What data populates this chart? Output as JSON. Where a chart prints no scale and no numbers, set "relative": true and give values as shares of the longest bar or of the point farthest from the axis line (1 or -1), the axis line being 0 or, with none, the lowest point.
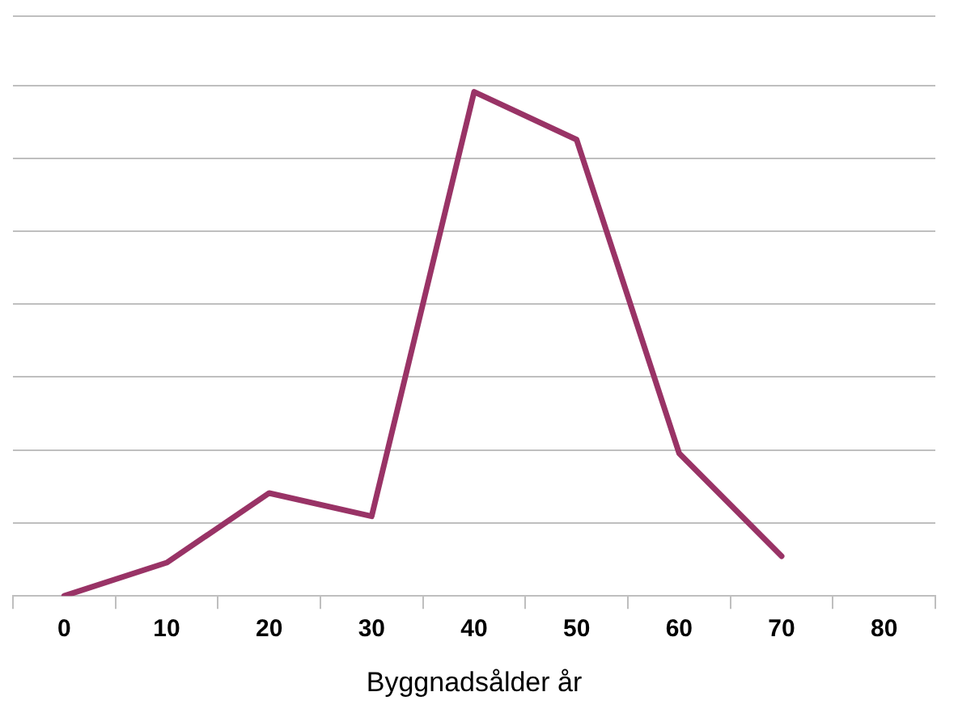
{
  "chart_data": {
    "type": "line",
    "xlabel": "Byggnadsålder år",
    "categories": [
      "0",
      "10",
      "20",
      "30",
      "40",
      "50",
      "60",
      "70",
      "80"
    ],
    "series": [
      {
        "color": "#993366",
        "values": [
          0,
          0.066,
          0.204,
          0.158,
          1,
          0.905,
          0.283,
          0.079,
          null
        ]
      }
    ],
    "relative": true,
    "grid": "y",
    "legend": false,
    "marker": "none",
    "line_style": "solid"
  }
}
